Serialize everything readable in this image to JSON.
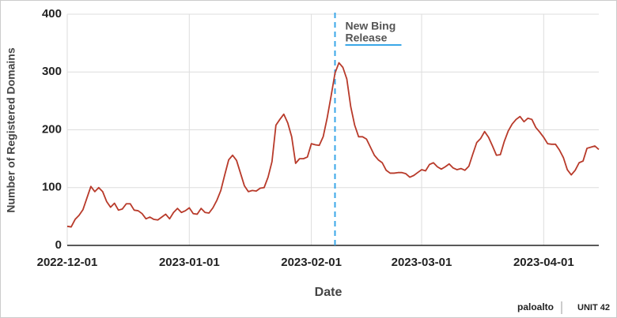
{
  "chart_data": {
    "type": "line",
    "x_label": "Date",
    "y_label": "Number of Registered Domains",
    "x": [
      "2022-12-01",
      "2022-12-02",
      "2022-12-03",
      "2022-12-04",
      "2022-12-05",
      "2022-12-06",
      "2022-12-07",
      "2022-12-08",
      "2022-12-09",
      "2022-12-10",
      "2022-12-11",
      "2022-12-12",
      "2022-12-13",
      "2022-12-14",
      "2022-12-15",
      "2022-12-16",
      "2022-12-17",
      "2022-12-18",
      "2022-12-19",
      "2022-12-20",
      "2022-12-21",
      "2022-12-22",
      "2022-12-23",
      "2022-12-24",
      "2022-12-25",
      "2022-12-26",
      "2022-12-27",
      "2022-12-28",
      "2022-12-29",
      "2022-12-30",
      "2022-12-31",
      "2023-01-01",
      "2023-01-02",
      "2023-01-03",
      "2023-01-04",
      "2023-01-05",
      "2023-01-06",
      "2023-01-07",
      "2023-01-08",
      "2023-01-09",
      "2023-01-10",
      "2023-01-11",
      "2023-01-12",
      "2023-01-13",
      "2023-01-14",
      "2023-01-15",
      "2023-01-16",
      "2023-01-17",
      "2023-01-18",
      "2023-01-19",
      "2023-01-20",
      "2023-01-21",
      "2023-01-22",
      "2023-01-23",
      "2023-01-24",
      "2023-01-25",
      "2023-01-26",
      "2023-01-27",
      "2023-01-28",
      "2023-01-29",
      "2023-01-30",
      "2023-01-31",
      "2023-02-01",
      "2023-02-02",
      "2023-02-03",
      "2023-02-04",
      "2023-02-05",
      "2023-02-06",
      "2023-02-07",
      "2023-02-08",
      "2023-02-09",
      "2023-02-10",
      "2023-02-11",
      "2023-02-12",
      "2023-02-13",
      "2023-02-14",
      "2023-02-15",
      "2023-02-16",
      "2023-02-17",
      "2023-02-18",
      "2023-02-19",
      "2023-02-20",
      "2023-02-21",
      "2023-02-22",
      "2023-02-23",
      "2023-02-24",
      "2023-02-25",
      "2023-02-26",
      "2023-02-27",
      "2023-02-28",
      "2023-03-01",
      "2023-03-02",
      "2023-03-03",
      "2023-03-04",
      "2023-03-05",
      "2023-03-06",
      "2023-03-07",
      "2023-03-08",
      "2023-03-09",
      "2023-03-10",
      "2023-03-11",
      "2023-03-12",
      "2023-03-13",
      "2023-03-14",
      "2023-03-15",
      "2023-03-16",
      "2023-03-17",
      "2023-03-18",
      "2023-03-19",
      "2023-03-20",
      "2023-03-21",
      "2023-03-22",
      "2023-03-23",
      "2023-03-24",
      "2023-03-25",
      "2023-03-26",
      "2023-03-27",
      "2023-03-28",
      "2023-03-29",
      "2023-03-30",
      "2023-03-31",
      "2023-04-01",
      "2023-04-02",
      "2023-04-03",
      "2023-04-04",
      "2023-04-05",
      "2023-04-06",
      "2023-04-07",
      "2023-04-08",
      "2023-04-09",
      "2023-04-10",
      "2023-04-11",
      "2023-04-12",
      "2023-04-13",
      "2023-04-14",
      "2023-04-15"
    ],
    "series": [
      {
        "color": "#b83a2a",
        "values": [
          33,
          32,
          45,
          52,
          62,
          82,
          102,
          93,
          100,
          93,
          76,
          66,
          73,
          61,
          63,
          72,
          72,
          61,
          60,
          55,
          46,
          49,
          45,
          44,
          49,
          54,
          46,
          57,
          64,
          57,
          60,
          65,
          55,
          54,
          64,
          57,
          56,
          65,
          78,
          95,
          122,
          148,
          156,
          147,
          125,
          103,
          93,
          95,
          94,
          99,
          100,
          118,
          145,
          208,
          218,
          227,
          212,
          188,
          142,
          150,
          150,
          153,
          176,
          174,
          173,
          188,
          220,
          258,
          298,
          316,
          308,
          288,
          240,
          208,
          188,
          188,
          184,
          170,
          156,
          148,
          143,
          130,
          125,
          125,
          126,
          126,
          124,
          118,
          121,
          126,
          131,
          129,
          140,
          143,
          136,
          132,
          136,
          141,
          134,
          131,
          133,
          130,
          137,
          158,
          178,
          185,
          197,
          187,
          172,
          156,
          157,
          180,
          198,
          210,
          218,
          223,
          214,
          220,
          218,
          204,
          196,
          187,
          176,
          175,
          175,
          165,
          152,
          131,
          122,
          130,
          143,
          146,
          168,
          170,
          172,
          166
        ]
      }
    ],
    "xlim": [
      "2022-12-01",
      "2023-04-15"
    ],
    "xticks": [
      "2022-12-01",
      "2023-01-01",
      "2023-02-01",
      "2023-03-01",
      "2023-04-01"
    ],
    "ylim": [
      0,
      400
    ],
    "yticks": [
      0,
      100,
      200,
      300,
      400
    ],
    "grid": true,
    "annotation": {
      "x": "2023-02-07",
      "lines": [
        "New Bing",
        "Release"
      ],
      "color": "#3aa7e8"
    },
    "logos": [
      "paloalto",
      "UNIT 42"
    ]
  }
}
